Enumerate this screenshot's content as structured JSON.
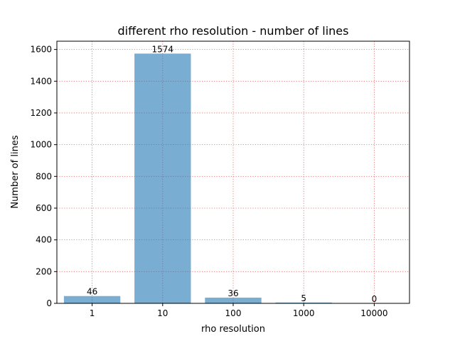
{
  "chart_data": {
    "type": "bar",
    "title": "different rho resolution - number of lines",
    "xlabel": "rho resolution",
    "ylabel": "Number of lines",
    "categories": [
      "1",
      "10",
      "100",
      "1000",
      "10000"
    ],
    "values": [
      46,
      1574,
      36,
      5,
      0
    ],
    "ylim": [
      0,
      1652
    ],
    "yticks": [
      0,
      200,
      400,
      600,
      800,
      1000,
      1200,
      1400,
      1600
    ],
    "grid": true,
    "bar_color": "#1f77b4",
    "grid_color": "#e06666"
  }
}
